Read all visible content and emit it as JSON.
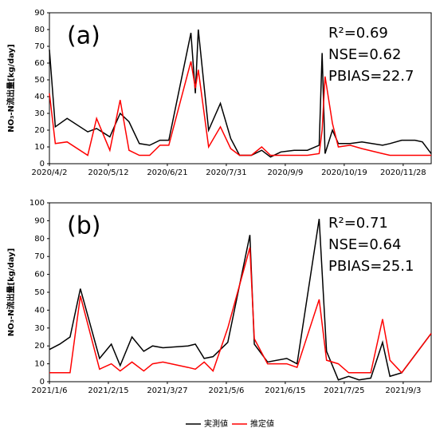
{
  "chart_data": [
    {
      "type": "line",
      "annotation": "(a)",
      "stats": [
        "R²=0.69",
        "NSE=0.62",
        "PBIAS=22.7"
      ],
      "ylabel": "NO₃-N流出量[kg/day]",
      "x": [
        "2020/4/2",
        "2020/4/6",
        "2020/4/14",
        "2020/4/28",
        "2020/5/4",
        "2020/5/13",
        "2020/5/20",
        "2020/5/26",
        "2020/6/2",
        "2020/6/9",
        "2020/6/16",
        "2020/6/22",
        "2020/7/7",
        "2020/7/10",
        "2020/7/12",
        "2020/7/19",
        "2020/7/27",
        "2020/8/3",
        "2020/8/9",
        "2020/8/17",
        "2020/8/24",
        "2020/8/30",
        "2020/9/6",
        "2020/9/15",
        "2020/9/24",
        "2020/10/2",
        "2020/10/4",
        "2020/10/6",
        "2020/10/11",
        "2020/10/15",
        "2020/10/23",
        "2020/10/31",
        "2020/11/14",
        "2020/11/19",
        "2020/11/27",
        "2020/12/6",
        "2020/12/11",
        "2020/12/17"
      ],
      "series": [
        {
          "name": "実測値",
          "color": "#000000",
          "values": [
            68,
            22,
            27,
            19,
            21,
            16,
            30,
            25,
            12,
            11,
            14,
            14,
            78,
            42,
            80,
            20,
            36,
            15,
            5,
            5,
            8,
            4,
            7,
            8,
            8,
            11,
            66,
            6,
            20,
            12,
            12,
            13,
            11,
            12,
            14,
            14,
            13,
            6
          ]
        },
        {
          "name": "推定値",
          "color": "#ff0000",
          "values": [
            42,
            12,
            13,
            5,
            27,
            8,
            38,
            8,
            5,
            5,
            11,
            11,
            61,
            45,
            56,
            10,
            22,
            9,
            5,
            5,
            10,
            5,
            5,
            5,
            5,
            6,
            20,
            52,
            24,
            10,
            11,
            9,
            6,
            5,
            5,
            5,
            5,
            5
          ]
        }
      ],
      "xlim": [
        "2020/4/2",
        "2020/12/17"
      ],
      "xticks": [
        "2020/4/2",
        "2020/5/12",
        "2020/6/21",
        "2020/7/31",
        "2020/9/9",
        "2020/10/19",
        "2020/11/28"
      ],
      "ylim": [
        0,
        90
      ],
      "yticks": [
        0,
        10,
        20,
        30,
        40,
        50,
        60,
        70,
        80,
        90
      ]
    },
    {
      "type": "line",
      "annotation": "(b)",
      "stats": [
        "R²=0.71",
        "NSE=0.64",
        "PBIAS=25.1"
      ],
      "ylabel": "NO₃-N流出量[kg/day]",
      "x": [
        "2021/1/6",
        "2021/1/13",
        "2021/1/20",
        "2021/1/27",
        "2021/2/9",
        "2021/2/17",
        "2021/2/23",
        "2021/3/3",
        "2021/3/11",
        "2021/3/17",
        "2021/3/24",
        "2021/4/10",
        "2021/4/15",
        "2021/4/21",
        "2021/4/27",
        "2021/5/7",
        "2021/5/22",
        "2021/5/25",
        "2021/6/3",
        "2021/6/16",
        "2021/6/23",
        "2021/7/8",
        "2021/7/13",
        "2021/7/21",
        "2021/7/28",
        "2021/8/4",
        "2021/8/12",
        "2021/8/20",
        "2021/8/25",
        "2021/9/2",
        "2021/9/22"
      ],
      "series": [
        {
          "color": "#000000",
          "values": [
            18,
            21,
            25,
            52,
            13,
            21,
            9,
            25,
            17,
            20,
            19,
            20,
            21,
            13,
            14,
            22,
            82,
            21,
            11,
            13,
            10,
            91,
            17,
            1,
            3,
            1,
            2,
            22,
            3,
            5,
            27
          ]
        },
        {
          "color": "#ff0000",
          "values": [
            5,
            5,
            5,
            48,
            7,
            10,
            6,
            11,
            6,
            10,
            11,
            8,
            7,
            11,
            6,
            30,
            75,
            24,
            10,
            10,
            8,
            46,
            12,
            10,
            5,
            5,
            5,
            35,
            12,
            5,
            27
          ]
        }
      ],
      "xlim": [
        "2021/1/6",
        "2021/9/22"
      ],
      "xticks": [
        "2021/1/6",
        "2021/2/15",
        "2021/3/27",
        "2021/5/6",
        "2021/6/15",
        "2021/7/25",
        "2021/9/3"
      ],
      "ylim": [
        0,
        100
      ],
      "yticks": [
        0,
        10,
        20,
        30,
        40,
        50,
        60,
        70,
        80,
        90,
        100
      ]
    }
  ]
}
